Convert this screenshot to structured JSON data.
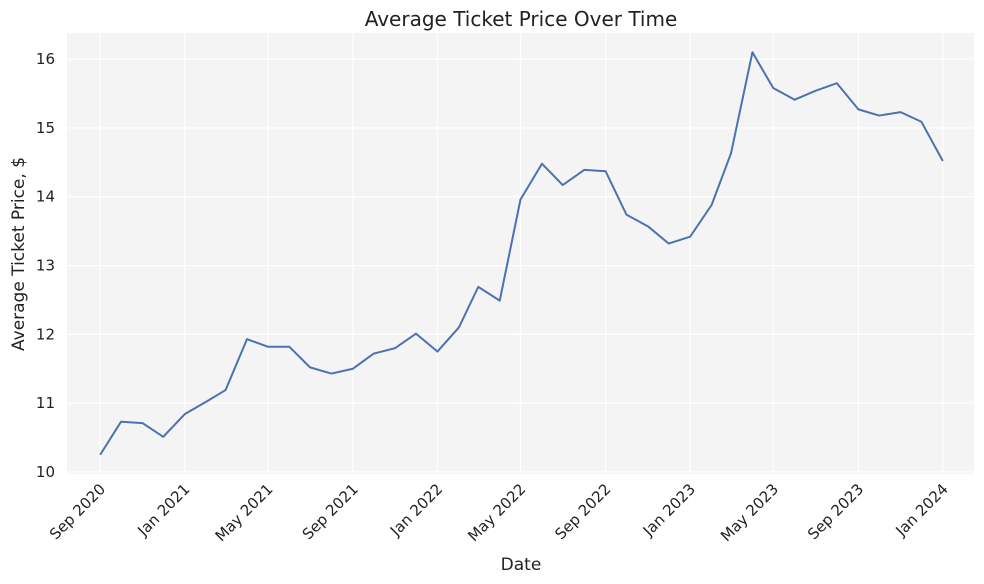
{
  "chart_data": {
    "type": "line",
    "title": "Average Ticket Price Over Time",
    "xlabel": "Date",
    "ylabel": "Average Ticket Price, $",
    "grid": true,
    "legend": "none",
    "colors": {
      "line": "#4c72b0",
      "plot_bg": "#f4f4f4",
      "grid": "#ffffff",
      "text": "#222222"
    },
    "xlim": [
      "2020-07-15",
      "2024-02-15"
    ],
    "ylim": [
      9.97,
      16.38
    ],
    "x_ticks": [
      {
        "date": "2020-09-01",
        "label": "Sep 2020"
      },
      {
        "date": "2021-01-01",
        "label": "Jan 2021"
      },
      {
        "date": "2021-05-01",
        "label": "May 2021"
      },
      {
        "date": "2021-09-01",
        "label": "Sep 2021"
      },
      {
        "date": "2022-01-01",
        "label": "Jan 2022"
      },
      {
        "date": "2022-05-01",
        "label": "May 2022"
      },
      {
        "date": "2022-09-01",
        "label": "Sep 2022"
      },
      {
        "date": "2023-01-01",
        "label": "Jan 2023"
      },
      {
        "date": "2023-05-01",
        "label": "May 2023"
      },
      {
        "date": "2023-09-01",
        "label": "Sep 2023"
      },
      {
        "date": "2024-01-01",
        "label": "Jan 2024"
      }
    ],
    "y_ticks": [
      10,
      11,
      12,
      13,
      14,
      15,
      16
    ],
    "series": [
      {
        "x": [
          "2020-09-01",
          "2020-10-01",
          "2020-11-01",
          "2020-12-01",
          "2021-01-01",
          "2021-02-01",
          "2021-03-01",
          "2021-04-01",
          "2021-05-01",
          "2021-06-01",
          "2021-07-01",
          "2021-08-01",
          "2021-09-01",
          "2021-10-01",
          "2021-11-01",
          "2021-12-01",
          "2022-01-01",
          "2022-02-01",
          "2022-03-01",
          "2022-04-01",
          "2022-05-01",
          "2022-06-01",
          "2022-07-01",
          "2022-08-01",
          "2022-09-01",
          "2022-10-01",
          "2022-11-01",
          "2022-12-01",
          "2023-01-01",
          "2023-02-01",
          "2023-03-01",
          "2023-04-01",
          "2023-05-01",
          "2023-06-01",
          "2023-07-01",
          "2023-08-01",
          "2023-09-01",
          "2023-10-01",
          "2023-11-01",
          "2023-12-01",
          "2024-01-01"
        ],
        "values": [
          10.25,
          10.73,
          10.71,
          10.51,
          10.84,
          11.02,
          11.19,
          11.93,
          11.82,
          11.82,
          11.52,
          11.43,
          11.5,
          11.72,
          11.8,
          12.01,
          11.75,
          12.1,
          12.69,
          12.49,
          13.96,
          14.48,
          14.17,
          14.39,
          14.37,
          13.74,
          13.57,
          13.32,
          13.42,
          13.88,
          14.63,
          16.1,
          15.58,
          15.41,
          15.54,
          15.65,
          15.27,
          15.18,
          15.23,
          15.09,
          14.52
        ]
      }
    ]
  }
}
